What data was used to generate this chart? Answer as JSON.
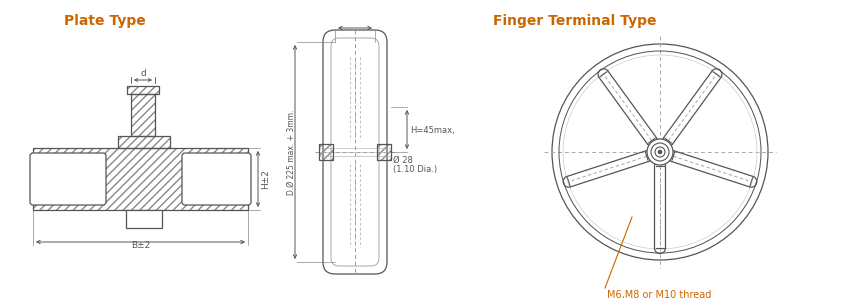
{
  "title_plate": "Plate Type",
  "title_finger": "Finger Terminal Type",
  "title_color": "#cc6600",
  "title_fontsize": 10,
  "bg_color": "#ffffff",
  "line_color": "#555555",
  "note_m6": "M6,M8 or M10 thread",
  "note_m6_color": "#cc6600",
  "label_H45": "H=45max,",
  "label_D225": "D.Ø 225 max. + 3mm.",
  "label_dia": "Ø 28",
  "label_dia2": "(1.10 Dia.)",
  "label_Hpm2": "H±2",
  "label_Bpm2": "B±2",
  "label_d": "d"
}
